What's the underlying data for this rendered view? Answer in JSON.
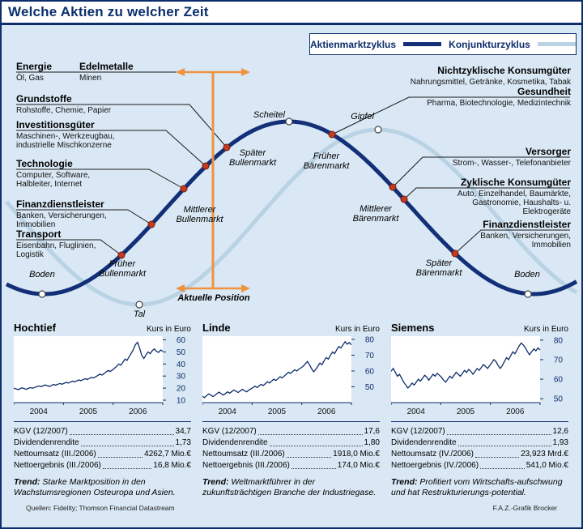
{
  "header": {
    "title": "Welche Aktien zu welcher Zeit"
  },
  "legend": {
    "stock_cycle": {
      "label": "Aktienmarktzyklus",
      "color": "#122f78"
    },
    "business_cycle": {
      "label": "Konjunkturzyklus",
      "color": "#b9d2e4"
    }
  },
  "cycle": {
    "sectors_left": [
      {
        "name": "Energie",
        "sub": "Öl, Gas"
      },
      {
        "name": "Edelmetalle",
        "sub": "Minen"
      },
      {
        "name": "Grundstoffe",
        "sub": "Rohstoffe, Chemie, Papier"
      },
      {
        "name": "Investitionsgüter",
        "sub": "Maschinen-, Werkzeugbau, industrielle Mischkonzerne"
      },
      {
        "name": "Technologie",
        "sub": "Computer, Software, Halbleiter, Internet"
      },
      {
        "name": "Finanzdienstleister",
        "sub": "Banken, Versicherungen, Immobilien"
      },
      {
        "name": "Transport",
        "sub": "Eisenbahn, Fluglinien, Logistik"
      }
    ],
    "sectors_right": [
      {
        "name": "Nichtzyklische Konsumgüter",
        "sub": "Nahrungsmittel, Getränke, Kosmetika, Tabak"
      },
      {
        "name": "Gesundheit",
        "sub": "Pharma, Biotechnologie, Medizintechnik"
      },
      {
        "name": "Versorger",
        "sub": "Strom-, Wasser-, Telefonanbieter"
      },
      {
        "name": "Zyklische Konsumgüter",
        "sub": "Auto, Einzelhandel, Baumärkte, Gastronomie, Haushalts- u. Elektrogeräte"
      },
      {
        "name": "Finanzdienstleister",
        "sub": "Banken, Versicherungen, Immobilien"
      }
    ],
    "phases": {
      "boden_left": "Boden",
      "tal": "Tal",
      "frueher_bulle": "Früher Bullenmarkt",
      "mittlerer_bulle": "Mittlerer Bullenmarkt",
      "spaeter_bulle": "Später Bullenmarkt",
      "scheitel": "Scheitel",
      "frueher_baer": "Früher Bärenmarkt",
      "mittlerer_baer": "Mittlerer Bärenmarkt",
      "spaeter_baer": "Später Bärenmarkt",
      "gipfel": "Gipfel",
      "boden_right": "Boden"
    },
    "current_position_label": "Aktuelle Position",
    "colors": {
      "stock_curve": "#122f78",
      "business_curve": "#b9d2e4",
      "marker_red": "#c23b22",
      "marker_white": "#ffffff",
      "position_orange": "#ef9340"
    }
  },
  "chart_data": [
    {
      "type": "line",
      "title": "Hochtief",
      "ylabel": "Kurs in Euro",
      "x_ticks": [
        "2004",
        "2005",
        "2006"
      ],
      "y_ticks": [
        60,
        50,
        40,
        30,
        20,
        10
      ],
      "ylim": [
        8,
        63
      ],
      "values": [
        20.0,
        19.4,
        18.8,
        19.5,
        20.2,
        19.6,
        19.0,
        19.8,
        20.5,
        19.9,
        20.6,
        21.2,
        21.8,
        21.2,
        22.0,
        22.6,
        22.0,
        21.4,
        22.2,
        23.0,
        22.4,
        23.2,
        23.8,
        23.2,
        24.0,
        24.8,
        24.2,
        25.0,
        25.8,
        25.2,
        26.0,
        26.8,
        26.2,
        27.0,
        27.8,
        27.2,
        28.0,
        29.0,
        28.4,
        29.4,
        30.4,
        31.6,
        30.8,
        32.0,
        33.4,
        34.6,
        33.8,
        35.0,
        36.5,
        38.0,
        40.0,
        39.0,
        41.5,
        44.0,
        43.0,
        46.0,
        49.0,
        52.0,
        56.0,
        58.0,
        53.0,
        47.0,
        44.5,
        47.5,
        50.0,
        48.5,
        51.0,
        52.5,
        50.5,
        49.5,
        51.5,
        50.5
      ],
      "stats": [
        {
          "label": "KGV (12/2007)",
          "value": "34,7"
        },
        {
          "label": "Dividendenrendite",
          "value": "1,73"
        },
        {
          "label": "Nettoumsatz (III./2006)",
          "value": "4262,7 Mio.€"
        },
        {
          "label": "Nettoergebnis (III./2006)",
          "value": "16,8 Mio.€"
        }
      ],
      "trend_label": "Trend:",
      "trend": "Starke Marktposition in den Wachstumsregionen Osteuropa und Asien."
    },
    {
      "type": "line",
      "title": "Linde",
      "ylabel": "Kurs in Euro",
      "x_ticks": [
        "2004",
        "2005",
        "2006"
      ],
      "y_ticks": [
        80,
        70,
        60,
        50
      ],
      "ylim": [
        40,
        82
      ],
      "values": [
        44.0,
        43.2,
        44.5,
        45.5,
        44.8,
        43.8,
        44.6,
        45.8,
        46.6,
        45.6,
        44.8,
        45.8,
        46.8,
        46.0,
        47.0,
        48.0,
        47.2,
        46.4,
        47.4,
        48.4,
        47.6,
        46.8,
        47.8,
        48.6,
        49.4,
        50.4,
        49.6,
        50.6,
        51.6,
        50.8,
        52.0,
        53.2,
        52.4,
        53.6,
        54.8,
        54.0,
        55.2,
        56.4,
        55.6,
        56.8,
        58.0,
        59.2,
        58.4,
        59.6,
        60.8,
        60.0,
        61.2,
        62.0,
        63.0,
        64.5,
        66.0,
        64.0,
        61.5,
        59.5,
        61.0,
        63.0,
        65.0,
        64.0,
        66.5,
        68.5,
        67.5,
        70.0,
        72.0,
        71.0,
        73.5,
        75.5,
        74.5,
        76.5,
        78.5,
        77.0,
        78.0,
        76.5
      ],
      "stats": [
        {
          "label": "KGV (12/2007)",
          "value": "17,6"
        },
        {
          "label": "Dividendenrendite",
          "value": "1,80"
        },
        {
          "label": "Nettoumsatz (III./2006)",
          "value": "1918,0 Mio.€"
        },
        {
          "label": "Nettoergebnis (III./2006)",
          "value": "174,0 Mio.€"
        }
      ],
      "trend_label": "Trend:",
      "trend": "Weltmarktführer in der zukunftsträchtigen Branche der Industriegase."
    },
    {
      "type": "line",
      "title": "Siemens",
      "ylabel": "Kurs in Euro",
      "x_ticks": [
        "2004",
        "2005",
        "2006"
      ],
      "y_ticks": [
        80,
        70,
        60,
        50
      ],
      "ylim": [
        48,
        82
      ],
      "values": [
        64.0,
        65.5,
        63.5,
        61.5,
        62.5,
        60.5,
        58.5,
        57.0,
        55.5,
        56.5,
        58.0,
        57.0,
        58.5,
        60.0,
        59.0,
        60.5,
        62.0,
        61.0,
        59.5,
        61.0,
        62.5,
        61.5,
        63.0,
        62.0,
        61.0,
        59.5,
        58.5,
        60.0,
        61.5,
        60.5,
        62.0,
        63.5,
        62.5,
        61.5,
        63.0,
        64.5,
        63.5,
        65.0,
        64.0,
        62.5,
        64.0,
        65.5,
        64.5,
        66.0,
        67.5,
        66.5,
        65.5,
        67.0,
        68.5,
        70.0,
        69.0,
        67.0,
        65.5,
        67.0,
        69.0,
        71.0,
        70.0,
        72.0,
        74.0,
        73.0,
        75.0,
        77.0,
        78.5,
        77.5,
        76.0,
        74.0,
        72.5,
        74.0,
        75.5,
        74.5,
        76.0,
        75.0
      ],
      "stats": [
        {
          "label": "KGV (12/2007)",
          "value": "12,6"
        },
        {
          "label": "Dividendenrendite",
          "value": "1,93"
        },
        {
          "label": "Nettoumsatz (IV./2006)",
          "value": "23,923 Mrd.€"
        },
        {
          "label": "Nettoergebnis (IV./2006)",
          "value": "541,0 Mio.€"
        }
      ],
      "trend_label": "Trend:",
      "trend": "Profitiert vom Wirtschafts-aufschwung und hat Restrukturierungs-potential."
    }
  ],
  "footer": {
    "sources": "Quellen: Fidelity; Thomson Financial Datastream",
    "credit": "F.A.Z.-Grafik Brocker"
  }
}
